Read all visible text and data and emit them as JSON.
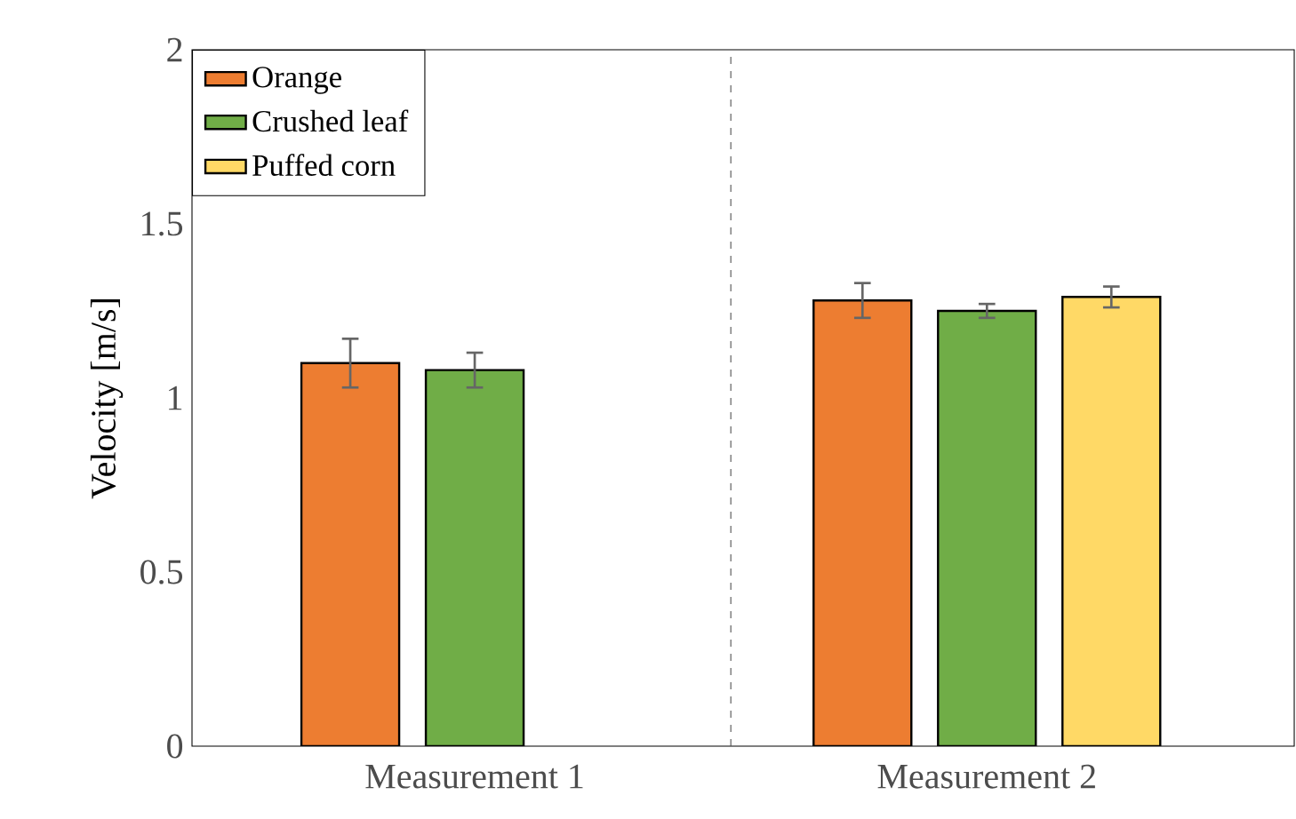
{
  "chart_data": {
    "type": "bar",
    "ylabel": "Velocity [m/s]",
    "categories": [
      "Measurement 1",
      "Measurement 2"
    ],
    "series": [
      {
        "name": "Orange",
        "color": "#ed7d31",
        "values": [
          1.1,
          1.28
        ],
        "errors": [
          0.07,
          0.05
        ]
      },
      {
        "name": "Crushed leaf",
        "color": "#70ad47",
        "values": [
          1.08,
          1.25
        ],
        "errors": [
          0.05,
          0.02
        ]
      },
      {
        "name": "Puffed corn",
        "color": "#ffd966",
        "values": [
          null,
          1.29
        ],
        "errors": [
          null,
          0.03
        ]
      }
    ],
    "ylim": [
      0,
      2
    ],
    "yticks": [
      0,
      0.5,
      1,
      1.5,
      2
    ],
    "legend": "top left"
  }
}
